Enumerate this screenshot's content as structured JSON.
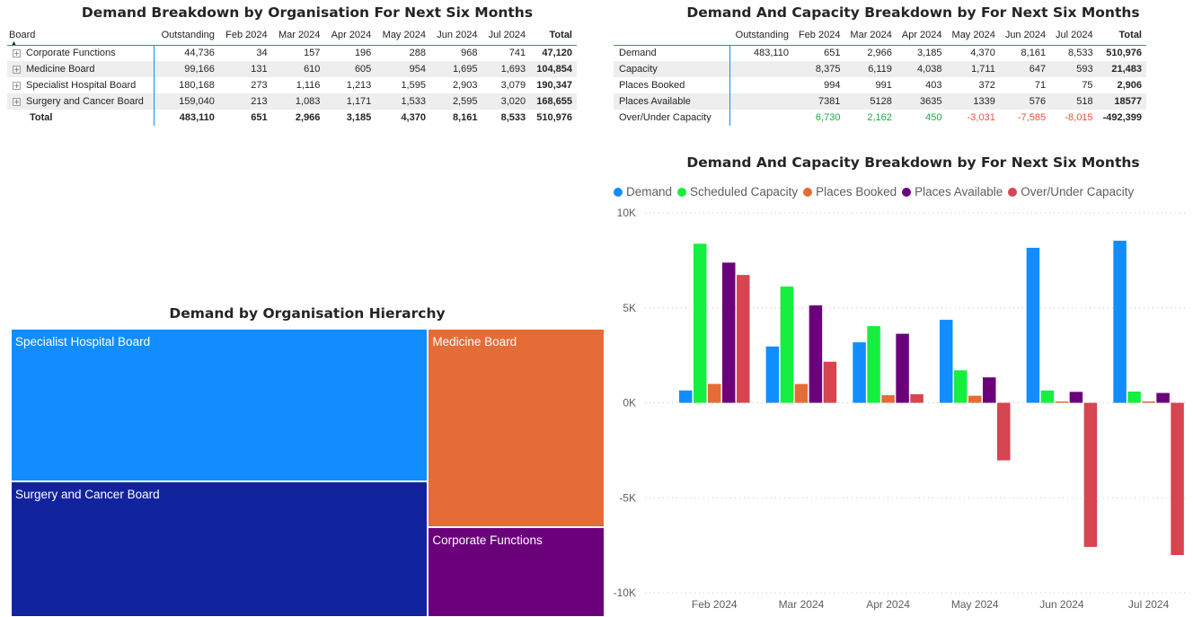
{
  "table1": {
    "title": "Demand Breakdown by Organisation For Next Six Months",
    "columns": [
      "Board",
      "Outstanding",
      "Feb 2024",
      "Mar 2024",
      "Apr 2024",
      "May 2024",
      "Jun 2024",
      "Jul 2024",
      "Total"
    ],
    "rows": [
      {
        "label": "Corporate Functions",
        "values": [
          "44,736",
          "34",
          "157",
          "196",
          "288",
          "968",
          "741"
        ],
        "total": "47,120"
      },
      {
        "label": "Medicine Board",
        "values": [
          "99,166",
          "131",
          "610",
          "605",
          "954",
          "1,695",
          "1,693"
        ],
        "total": "104,854"
      },
      {
        "label": "Specialist Hospital Board",
        "values": [
          "180,168",
          "273",
          "1,116",
          "1,213",
          "1,595",
          "2,903",
          "3,079"
        ],
        "total": "190,347"
      },
      {
        "label": "Surgery and Cancer Board",
        "values": [
          "159,040",
          "213",
          "1,083",
          "1,171",
          "1,533",
          "2,595",
          "3,020"
        ],
        "total": "168,655"
      }
    ],
    "totals": {
      "label": "Total",
      "values": [
        "483,110",
        "651",
        "2,966",
        "3,185",
        "4,370",
        "8,161",
        "8,533"
      ],
      "total": "510,976"
    }
  },
  "table2": {
    "title": "Demand And Capacity Breakdown by For Next Six Months",
    "columns": [
      "",
      "Outstanding",
      "Feb 2024",
      "Mar 2024",
      "Apr 2024",
      "May 2024",
      "Jun 2024",
      "Jul 2024",
      "Total"
    ],
    "rows": [
      {
        "label": "Demand",
        "values": [
          "483,110",
          "651",
          "2,966",
          "3,185",
          "4,370",
          "8,161",
          "8,533"
        ],
        "total": "510,976"
      },
      {
        "label": "Capacity",
        "values": [
          "",
          "8,375",
          "6,119",
          "4,038",
          "1,711",
          "647",
          "593"
        ],
        "total": "21,483"
      },
      {
        "label": "Places Booked",
        "values": [
          "",
          "994",
          "991",
          "403",
          "372",
          "71",
          "75"
        ],
        "total": "2,906"
      },
      {
        "label": "Places Available",
        "values": [
          "",
          "7381",
          "5128",
          "3635",
          "1339",
          "576",
          "518"
        ],
        "total": "18577"
      },
      {
        "label": "Over/Under Capacity",
        "values": [
          "",
          "6,730",
          "2,162",
          "450",
          "-3,031",
          "-7,585",
          "-8,015"
        ],
        "total": "-492,399"
      }
    ]
  },
  "treemap": {
    "title": "Demand by Organisation Hierarchy",
    "tiles": [
      {
        "label": "Specialist Hospital Board",
        "value": 190347,
        "color": "#118dff"
      },
      {
        "label": "Surgery and Cancer Board",
        "value": 168655,
        "color": "#12239e"
      },
      {
        "label": "Medicine Board",
        "value": 104854,
        "color": "#e66c37"
      },
      {
        "label": "Corporate Functions",
        "value": 47120,
        "color": "#6b007b"
      }
    ]
  },
  "chart_data": {
    "type": "bar",
    "title": "Demand And Capacity Breakdown by For Next Six Months",
    "categories": [
      "Feb 2024",
      "Mar 2024",
      "Apr 2024",
      "May 2024",
      "Jun 2024",
      "Jul 2024"
    ],
    "series": [
      {
        "name": "Demand",
        "color": "#118dff",
        "values": [
          651,
          2966,
          3185,
          4370,
          8161,
          8533
        ]
      },
      {
        "name": "Scheduled Capacity",
        "color": "#15ef3f",
        "values": [
          8375,
          6119,
          4038,
          1711,
          647,
          593
        ]
      },
      {
        "name": "Places Booked",
        "color": "#e66c37",
        "values": [
          994,
          991,
          403,
          372,
          71,
          75
        ]
      },
      {
        "name": "Places Available",
        "color": "#6b007b",
        "values": [
          7381,
          5128,
          3635,
          1339,
          576,
          518
        ]
      },
      {
        "name": "Over/Under Capacity",
        "color": "#d64550",
        "values": [
          6730,
          2162,
          450,
          -3031,
          -7585,
          -8015
        ]
      }
    ],
    "ylim": [
      -10000,
      10000
    ],
    "yticks": [
      {
        "value": 10000,
        "label": "10K"
      },
      {
        "value": 5000,
        "label": "5K"
      },
      {
        "value": 0,
        "label": "0K"
      },
      {
        "value": -5000,
        "label": "-5K"
      },
      {
        "value": -10000,
        "label": "-10K"
      }
    ],
    "grid": true,
    "legend_position": "top-left"
  }
}
